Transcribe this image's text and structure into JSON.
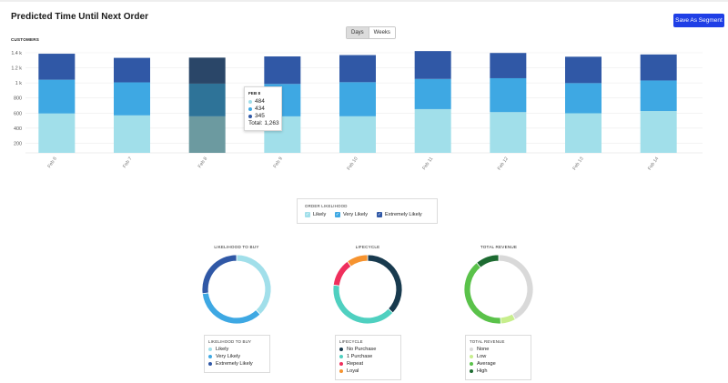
{
  "header": {
    "title": "Predicted Time Until Next Order",
    "save_label": "Save As Segment"
  },
  "toggle": {
    "days_label": "Days",
    "weeks_label": "Weeks",
    "active": "Days"
  },
  "chart_data": {
    "type": "bar",
    "stacked": true,
    "ylabel": "CUSTOMERS",
    "ylim": [
      0,
      1400
    ],
    "yticks": [
      "200",
      "400",
      "600",
      "800",
      "1 k",
      "1.2 k",
      "1.4 k"
    ],
    "categories": [
      "Feb 6",
      "Feb 7",
      "Feb 8",
      "Feb 9",
      "Feb 10",
      "Feb 11",
      "Feb 12",
      "Feb 13",
      "Feb 14"
    ],
    "series": [
      {
        "name": "Likely",
        "color": "#a1dfea",
        "values": [
          522,
          497,
          484,
          484,
          485,
          580,
          540,
          525,
          555
        ]
      },
      {
        "name": "Very Likely",
        "color": "#3ea8e3",
        "values": [
          448,
          438,
          434,
          430,
          452,
          400,
          450,
          400,
          405
        ]
      },
      {
        "name": "Extremely Likely",
        "color": "#3058a6",
        "values": [
          345,
          325,
          345,
          365,
          360,
          370,
          335,
          350,
          345
        ]
      }
    ],
    "highlight_index": 2,
    "tooltip": {
      "date": "FEB 8",
      "values": [
        "484",
        "434",
        "345"
      ],
      "total_label": "Total: 1,263"
    }
  },
  "bar_legend": {
    "title": "ORDER LIKELIHOOD",
    "items": [
      {
        "label": "Likely",
        "color": "#a1dfea"
      },
      {
        "label": "Very Likely",
        "color": "#3ea8e3"
      },
      {
        "label": "Extremely Likely",
        "color": "#3058a6"
      }
    ]
  },
  "donuts": [
    {
      "title": "LIKELIHOOD TO BUY",
      "legend_title": "LIKELIHOOD TO BUY",
      "segments": [
        {
          "label": "Likely",
          "value": 38,
          "color": "#a1dfea"
        },
        {
          "label": "Very Likely",
          "value": 35,
          "color": "#3ea8e3"
        },
        {
          "label": "Extremely Likely",
          "value": 27,
          "color": "#3058a6"
        }
      ]
    },
    {
      "title": "LIFECYCLE",
      "legend_title": "LIFECYCLE",
      "segments": [
        {
          "label": "No Purchase",
          "value": 37,
          "color": "#183a4e"
        },
        {
          "label": "1 Purchase",
          "value": 40,
          "color": "#4fd0c0"
        },
        {
          "label": "Repeat",
          "value": 13,
          "color": "#ef2f5c"
        },
        {
          "label": "Loyal",
          "value": 10,
          "color": "#f6932f"
        }
      ]
    },
    {
      "title": "TOTAL REVENUE",
      "legend_title": "TOTAL REVENUE",
      "segments": [
        {
          "label": "None",
          "value": 42,
          "color": "#d9d9d9"
        },
        {
          "label": "Low",
          "value": 7,
          "color": "#c7ee8d"
        },
        {
          "label": "Average",
          "value": 40,
          "color": "#5ac24a"
        },
        {
          "label": "High",
          "value": 11,
          "color": "#1d6b31"
        }
      ]
    }
  ]
}
